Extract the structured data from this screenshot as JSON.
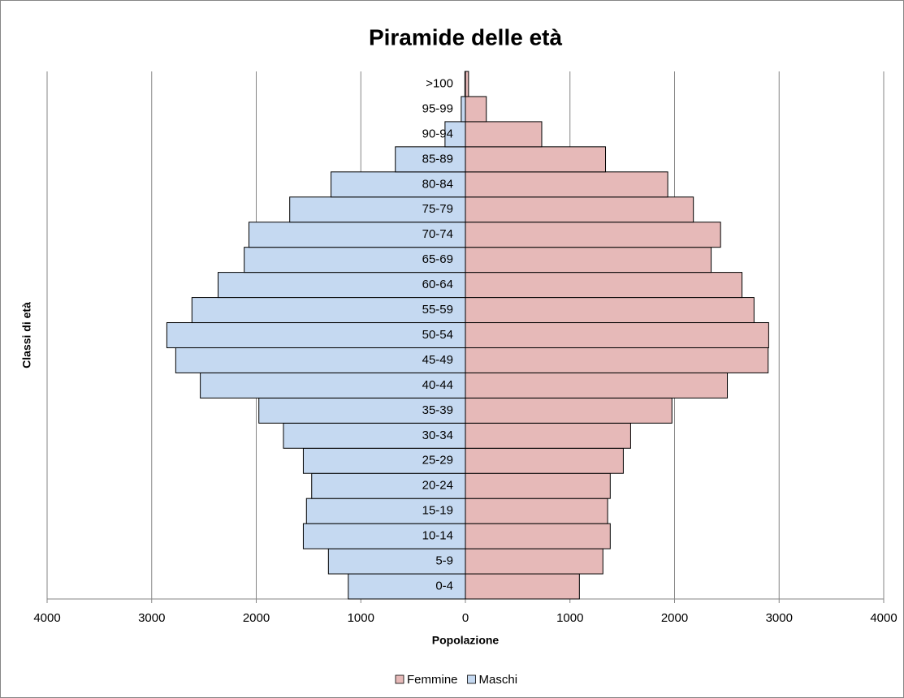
{
  "chart_data": {
    "type": "pyramid",
    "title": "Piramide delle età",
    "x_label": "Popolazione",
    "y_label": "Classi di età",
    "categories": [
      "0-4",
      "5-9",
      "10-14",
      "15-19",
      "20-24",
      "25-29",
      "30-34",
      "35-39",
      "40-44",
      "45-49",
      "50-54",
      "55-59",
      "60-64",
      "65-69",
      "70-74",
      "75-79",
      "80-84",
      "85-89",
      "90-94",
      "95-99",
      ">100"
    ],
    "series": [
      {
        "name": "Femmine",
        "color": "#e6b9b8",
        "values": [
          1090,
          1315,
          1385,
          1360,
          1385,
          1510,
          1580,
          1975,
          2505,
          2895,
          2900,
          2760,
          2645,
          2350,
          2440,
          2180,
          1935,
          1340,
          730,
          200,
          30
        ]
      },
      {
        "name": "Maschi",
        "color": "#c5d9f1",
        "values": [
          -1120,
          -1310,
          -1550,
          -1520,
          -1470,
          -1550,
          -1740,
          -1975,
          -2535,
          -2770,
          -2855,
          -2615,
          -2365,
          -2115,
          -2070,
          -1680,
          -1285,
          -670,
          -195,
          -40,
          -5
        ]
      }
    ],
    "xlim": [
      -4000,
      4000
    ],
    "xticks": [
      {
        "value": -4000,
        "label": "4000"
      },
      {
        "value": -3000,
        "label": "3000"
      },
      {
        "value": -2000,
        "label": "2000"
      },
      {
        "value": -1000,
        "label": "1000"
      },
      0,
      1000,
      2000,
      3000,
      4000
    ],
    "grid": true,
    "legend": "bottom"
  }
}
